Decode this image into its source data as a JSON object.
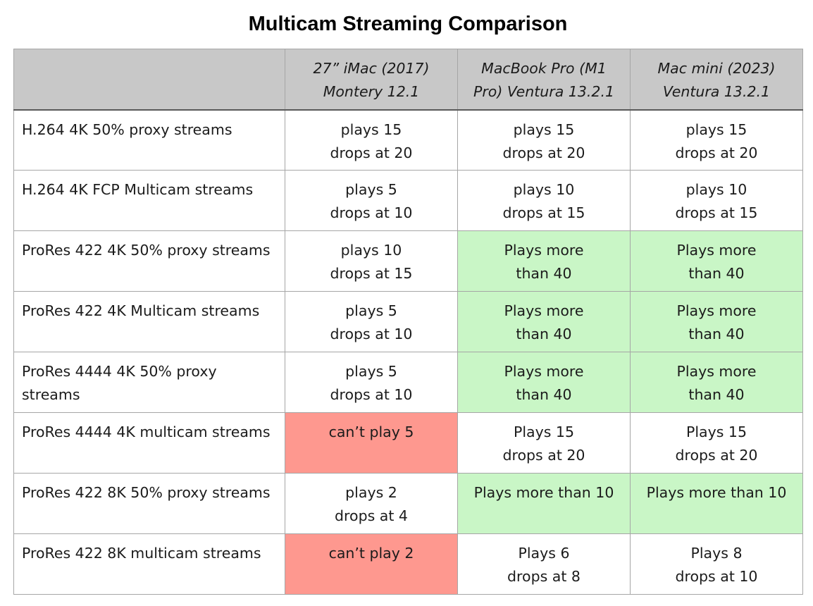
{
  "title": "Multicam Streaming Comparison",
  "colors": {
    "header_bg": "#c8c8c8",
    "good": "#c9f6c6",
    "bad": "#fe988f"
  },
  "columns": [
    {
      "line1": "27” iMac (2017)",
      "line2": "Montery 12.1"
    },
    {
      "line1": "MacBook Pro (M1",
      "line2": "Pro) Ventura 13.2.1"
    },
    {
      "line1": "Mac mini (2023)",
      "line2": "Ventura 13.2.1"
    }
  ],
  "rows": [
    {
      "label": "H.264 4K 50% proxy streams",
      "cells": [
        {
          "line1": "plays 15",
          "line2": "drops at 20",
          "status": ""
        },
        {
          "line1": "plays 15",
          "line2": "drops at 20",
          "status": ""
        },
        {
          "line1": "plays 15",
          "line2": "drops at 20",
          "status": ""
        }
      ]
    },
    {
      "label": "H.264 4K FCP Multicam streams",
      "cells": [
        {
          "line1": "plays 5",
          "line2": "drops at 10",
          "status": ""
        },
        {
          "line1": "plays 10",
          "line2": "drops at 15",
          "status": ""
        },
        {
          "line1": "plays 10",
          "line2": "drops at 15",
          "status": ""
        }
      ]
    },
    {
      "label": "ProRes 422 4K 50% proxy streams",
      "cells": [
        {
          "line1": "plays 10",
          "line2": "drops at 15",
          "status": ""
        },
        {
          "line1": "Plays more",
          "line2": "than 40",
          "status": "good"
        },
        {
          "line1": "Plays more",
          "line2": "than 40",
          "status": "good"
        }
      ]
    },
    {
      "label": "ProRes 422 4K Multicam streams",
      "cells": [
        {
          "line1": "plays 5",
          "line2": "drops at 10",
          "status": ""
        },
        {
          "line1": "Plays more",
          "line2": "than 40",
          "status": "good"
        },
        {
          "line1": "Plays more",
          "line2": "than 40",
          "status": "good"
        }
      ]
    },
    {
      "label": "ProRes 4444 4K 50% proxy streams",
      "cells": [
        {
          "line1": "plays 5",
          "line2": "drops at 10",
          "status": ""
        },
        {
          "line1": "Plays more",
          "line2": "than 40",
          "status": "good"
        },
        {
          "line1": "Plays more",
          "line2": "than 40",
          "status": "good"
        }
      ]
    },
    {
      "label": "ProRes 4444 4K multicam streams",
      "cells": [
        {
          "line1": "can’t play 5",
          "line2": "",
          "status": "bad"
        },
        {
          "line1": "Plays 15",
          "line2": "drops at 20",
          "status": ""
        },
        {
          "line1": "Plays 15",
          "line2": "drops at 20",
          "status": ""
        }
      ]
    },
    {
      "label": "ProRes 422 8K 50% proxy streams",
      "cells": [
        {
          "line1": "plays 2",
          "line2": "drops at 4",
          "status": ""
        },
        {
          "line1": "Plays more than 10",
          "line2": "",
          "status": "good"
        },
        {
          "line1": "Plays more than 10",
          "line2": "",
          "status": "good"
        }
      ]
    },
    {
      "label": "ProRes 422 8K multicam streams",
      "cells": [
        {
          "line1": "can’t play 2",
          "line2": "",
          "status": "bad"
        },
        {
          "line1": "Plays 6",
          "line2": "drops at 8",
          "status": ""
        },
        {
          "line1": "Plays 8",
          "line2": "drops at 10",
          "status": ""
        }
      ]
    }
  ]
}
